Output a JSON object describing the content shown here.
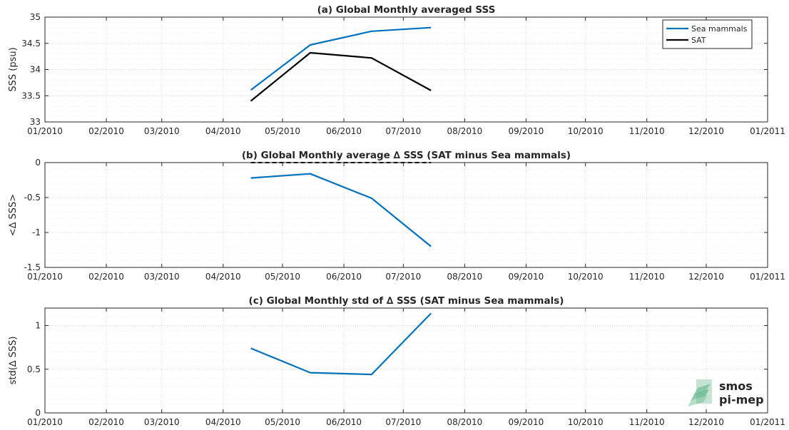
{
  "chart_data": [
    {
      "type": "line",
      "title": "(a) Global Monthly averaged SSS",
      "xlabel": "",
      "ylabel": "SSS (psu)",
      "x_ticks": [
        "01/2010",
        "02/2010",
        "03/2010",
        "04/2010",
        "05/2010",
        "06/2010",
        "07/2010",
        "08/2010",
        "09/2010",
        "10/2010",
        "11/2010",
        "12/2010",
        "01/2011"
      ],
      "xlim": [
        "2010-01-01",
        "2011-01-01"
      ],
      "ylim": [
        33,
        35
      ],
      "y_ticks": [
        "33",
        "33.5",
        "34",
        "34.5",
        "35"
      ],
      "y_tick_values": [
        33,
        33.5,
        34,
        34.5,
        35
      ],
      "grid": true,
      "legend_position": "top-right",
      "x": [
        "2010-04-15",
        "2010-05-15",
        "2010-06-15",
        "2010-07-15"
      ],
      "series": [
        {
          "name": "Sea mammals",
          "color": "#0072BD",
          "values": [
            33.61,
            34.47,
            34.73,
            34.8
          ]
        },
        {
          "name": "SAT",
          "color": "#000000",
          "values": [
            33.4,
            34.32,
            34.22,
            33.6
          ]
        }
      ]
    },
    {
      "type": "line",
      "title": "(b) Global Monthly average ∆ SSS (SAT minus Sea mammals)",
      "xlabel": "",
      "ylabel": "<∆ SSS>",
      "x_ticks": [
        "01/2010",
        "02/2010",
        "03/2010",
        "04/2010",
        "05/2010",
        "06/2010",
        "07/2010",
        "08/2010",
        "09/2010",
        "10/2010",
        "11/2010",
        "12/2010",
        "01/2011"
      ],
      "xlim": [
        "2010-01-01",
        "2011-01-01"
      ],
      "ylim": [
        -1.5,
        0
      ],
      "y_ticks": [
        "-1.5",
        "-1",
        "-0.5",
        "0"
      ],
      "y_tick_values": [
        -1.5,
        -1,
        -0.5,
        0
      ],
      "grid": true,
      "x": [
        "2010-04-15",
        "2010-05-15",
        "2010-06-15",
        "2010-07-15"
      ],
      "series": [
        {
          "color": "#0072BD",
          "values": [
            -0.22,
            -0.16,
            -0.51,
            -1.2
          ]
        },
        {
          "color": "#000000",
          "dashed": true,
          "values": [
            0,
            0,
            0,
            0
          ]
        }
      ]
    },
    {
      "type": "line",
      "title": "(c) Global Monthly std of ∆ SSS (SAT minus Sea mammals)",
      "xlabel": "",
      "ylabel": "std(∆ SSS)",
      "x_ticks": [
        "01/2010",
        "02/2010",
        "03/2010",
        "04/2010",
        "05/2010",
        "06/2010",
        "07/2010",
        "08/2010",
        "09/2010",
        "10/2010",
        "11/2010",
        "12/2010",
        "01/2011"
      ],
      "xlim": [
        "2010-01-01",
        "2011-01-01"
      ],
      "ylim": [
        0,
        1.2
      ],
      "y_ticks": [
        "0",
        "0.5",
        "1"
      ],
      "y_tick_values": [
        0,
        0.5,
        1
      ],
      "grid": true,
      "x": [
        "2010-04-15",
        "2010-05-15",
        "2010-06-15",
        "2010-07-15"
      ],
      "series": [
        {
          "color": "#0072BD",
          "values": [
            0.74,
            0.46,
            0.44,
            1.14
          ]
        }
      ]
    }
  ],
  "logo": {
    "line1": "smos",
    "line2": "pi-mep",
    "color": "#5fae8a"
  }
}
